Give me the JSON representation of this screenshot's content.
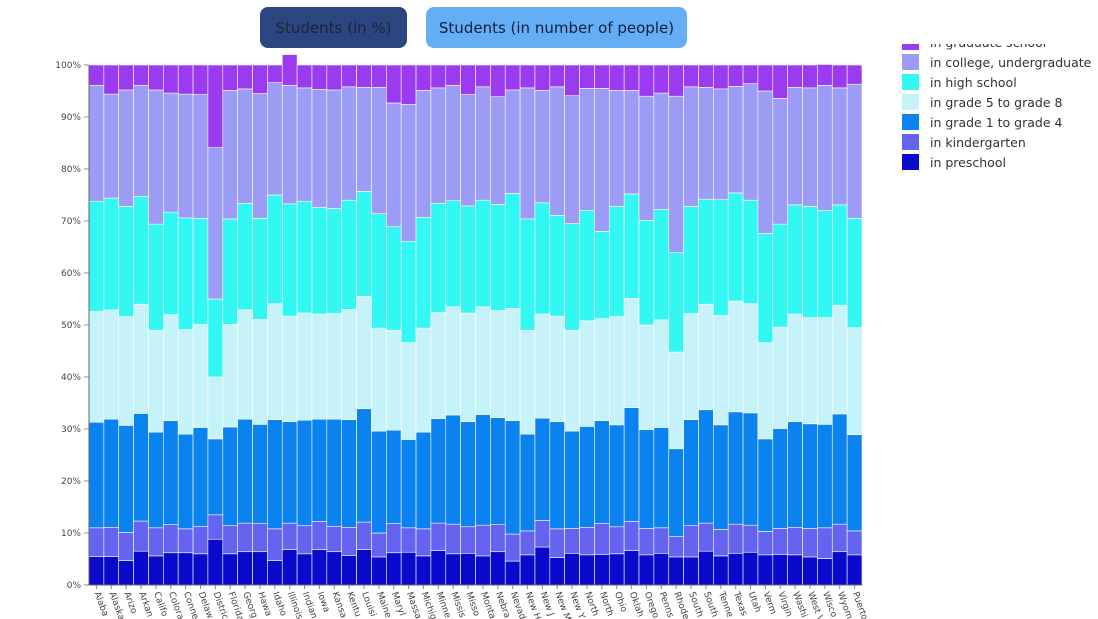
{
  "buttons": {
    "percent_label": "Students (in %)",
    "count_label": "Students (in number of people)"
  },
  "chart_data": {
    "type": "bar",
    "stacked": true,
    "ylim": [
      0,
      100
    ],
    "yticks": [
      "0%",
      "10%",
      "20%",
      "30%",
      "40%",
      "50%",
      "60%",
      "70%",
      "80%",
      "90%",
      "100%"
    ],
    "legend_position": "right",
    "categories": [
      "Alabama",
      "Alaska",
      "Arizona",
      "Arkansas",
      "California",
      "Colorado",
      "Connecticut",
      "Delaware",
      "District of Columbia",
      "Florida",
      "Georgia",
      "Hawaii",
      "Idaho",
      "Illinois",
      "Indiana",
      "Iowa",
      "Kansas",
      "Kentucky",
      "Louisiana",
      "Maine",
      "Maryland",
      "Massachusetts",
      "Michigan",
      "Minnesota",
      "Mississippi",
      "Missouri",
      "Montana",
      "Nebraska",
      "Nevada",
      "New Hampshire",
      "New Jersey",
      "New Mexico",
      "New York",
      "North Carolina",
      "North Dakota",
      "Ohio",
      "Oklahoma",
      "Oregon",
      "Pennsylvania",
      "Rhode Island",
      "South Carolina",
      "South Dakota",
      "Tennessee",
      "Texas",
      "Utah",
      "Vermont",
      "Virginia",
      "Washington",
      "West Virginia",
      "Wisconsin",
      "Wyoming",
      "Puerto Rico"
    ],
    "tick_labels": [
      "Alaba",
      "Alaska",
      "Arizo",
      "Arkan",
      "Califo",
      "Colora",
      "Conne",
      "Delaw",
      "Distric",
      "Florida",
      "Georg",
      "Hawa",
      "Idaho",
      "Illinois",
      "Indian",
      "Iowa",
      "Kansa",
      "Kentu",
      "Louisi",
      "Maine",
      "Maryl",
      "Massa",
      "Michig",
      "Minne",
      "Missis",
      "Misso",
      "Monta",
      "Nebra",
      "Nevad",
      "New H",
      "New J",
      "New M",
      "New Y",
      "North",
      "North",
      "Ohio",
      "Oklah",
      "Orego",
      "Penns",
      "Rhode",
      "South",
      "South",
      "Tenne",
      "Texas",
      "Utah",
      "Verm",
      "Virgin",
      "Washi",
      "West V",
      "Wisco",
      "Wyom",
      "Puerto"
    ],
    "series": [
      {
        "name": "in preschool",
        "color": "#0a0acc",
        "values": [
          5.5,
          5.5,
          4.7,
          6.5,
          5.6,
          6.2,
          6.2,
          6.0,
          8.8,
          6.0,
          6.4,
          6.4,
          4.7,
          6.8,
          6.0,
          6.8,
          6.4,
          5.7,
          6.8,
          5.4,
          6.2,
          6.3,
          5.6,
          6.6,
          6.0,
          6.1,
          5.6,
          6.4,
          4.6,
          5.8,
          7.3,
          5.3,
          6.1,
          5.8,
          5.9,
          6.0,
          6.6,
          5.8,
          6.1,
          5.4,
          5.4,
          6.5,
          5.6,
          6.1,
          6.3,
          5.8,
          5.9,
          5.8,
          5.4,
          5.1,
          6.4,
          5.8
        ]
      },
      {
        "name": "in kindergarten",
        "color": "#6464f0",
        "values": [
          5.5,
          5.6,
          5.4,
          5.8,
          5.4,
          5.4,
          4.6,
          5.3,
          4.7,
          5.4,
          5.5,
          5.4,
          6.1,
          5.1,
          5.4,
          5.4,
          4.9,
          5.4,
          5.3,
          4.6,
          5.6,
          4.7,
          5.2,
          5.3,
          5.7,
          5.1,
          5.9,
          5.2,
          5.2,
          4.6,
          5.1,
          5.5,
          4.8,
          5.3,
          5.9,
          5.2,
          5.6,
          5.1,
          4.9,
          3.9,
          6.0,
          5.4,
          5.1,
          5.6,
          5.2,
          4.5,
          5.0,
          5.3,
          5.5,
          5.9,
          5.3,
          4.6
        ]
      },
      {
        "name": "in grade 1 to grade 4",
        "color": "#0a82f0",
        "values": [
          20.3,
          20.8,
          20.6,
          20.7,
          18.4,
          20.0,
          18.2,
          19.0,
          14.6,
          19.0,
          20.0,
          19.1,
          21.0,
          19.5,
          20.3,
          19.7,
          20.6,
          20.7,
          21.8,
          19.6,
          18.0,
          17.0,
          18.6,
          20.1,
          21.0,
          20.2,
          21.3,
          20.6,
          21.8,
          18.6,
          19.7,
          20.6,
          18.7,
          19.4,
          19.8,
          19.6,
          21.9,
          19.0,
          19.3,
          16.9,
          20.4,
          21.8,
          20.1,
          21.6,
          21.6,
          17.8,
          19.2,
          20.3,
          20.1,
          19.9,
          21.2,
          18.5
        ]
      },
      {
        "name": "in grade 5 to grade 8",
        "color": "#c6f2fa",
        "values": [
          21.3,
          21.0,
          20.9,
          21.0,
          19.6,
          20.4,
          20.1,
          19.8,
          11.9,
          19.7,
          21.0,
          20.2,
          22.3,
          20.3,
          20.6,
          20.2,
          20.3,
          21.2,
          21.6,
          19.8,
          19.2,
          18.6,
          20.0,
          20.4,
          20.8,
          20.9,
          20.7,
          20.6,
          21.6,
          20.0,
          20.0,
          20.3,
          19.4,
          20.3,
          19.6,
          20.8,
          21.0,
          20.1,
          20.7,
          18.6,
          20.4,
          20.3,
          21.0,
          21.3,
          21.0,
          18.5,
          19.5,
          20.7,
          20.4,
          20.5,
          20.9,
          20.6
        ]
      },
      {
        "name": "in high school",
        "color": "#33f7f2",
        "values": [
          21.2,
          21.5,
          21.2,
          20.7,
          20.4,
          19.7,
          21.5,
          20.4,
          15.0,
          20.3,
          20.5,
          19.4,
          20.9,
          21.6,
          21.5,
          20.5,
          20.2,
          21.0,
          20.2,
          22.0,
          19.9,
          19.5,
          21.3,
          21.0,
          20.4,
          20.6,
          20.5,
          20.4,
          22.1,
          21.4,
          21.4,
          19.4,
          20.5,
          21.2,
          16.8,
          21.2,
          20.1,
          20.1,
          21.2,
          19.1,
          20.6,
          20.2,
          22.3,
          20.8,
          19.9,
          21.0,
          19.8,
          21.0,
          21.4,
          20.6,
          19.3,
          21.0
        ]
      },
      {
        "name": "in college, undergraduate",
        "color": "#9c9cf6",
        "values": [
          22.3,
          20.0,
          22.4,
          21.4,
          25.8,
          22.9,
          23.8,
          23.8,
          29.1,
          24.7,
          22.0,
          24.0,
          21.6,
          22.8,
          21.8,
          22.7,
          22.8,
          21.8,
          20.0,
          24.3,
          23.8,
          26.3,
          24.4,
          22.2,
          22.2,
          21.4,
          21.8,
          20.7,
          19.9,
          25.2,
          21.6,
          24.7,
          24.6,
          23.5,
          27.5,
          22.3,
          19.9,
          23.9,
          22.4,
          30.1,
          23.0,
          21.5,
          21.3,
          20.5,
          22.4,
          27.4,
          24.2,
          22.6,
          22.8,
          24.1,
          22.5,
          25.8
        ]
      },
      {
        "name": "in graduate school",
        "color": "#9b3bef",
        "values": [
          3.9,
          5.6,
          4.8,
          3.9,
          4.8,
          5.4,
          5.6,
          5.7,
          15.9,
          4.9,
          4.6,
          5.5,
          3.4,
          5.9,
          4.4,
          4.7,
          4.8,
          4.2,
          4.3,
          4.3,
          7.3,
          7.6,
          4.9,
          4.4,
          3.9,
          5.7,
          4.2,
          6.1,
          4.8,
          4.4,
          4.9,
          4.2,
          5.9,
          4.5,
          4.5,
          4.9,
          4.9,
          6.0,
          5.4,
          6.0,
          4.2,
          4.3,
          4.6,
          4.1,
          3.6,
          5.0,
          6.4,
          4.3,
          4.4,
          4.0,
          4.4,
          3.7
        ]
      }
    ]
  }
}
